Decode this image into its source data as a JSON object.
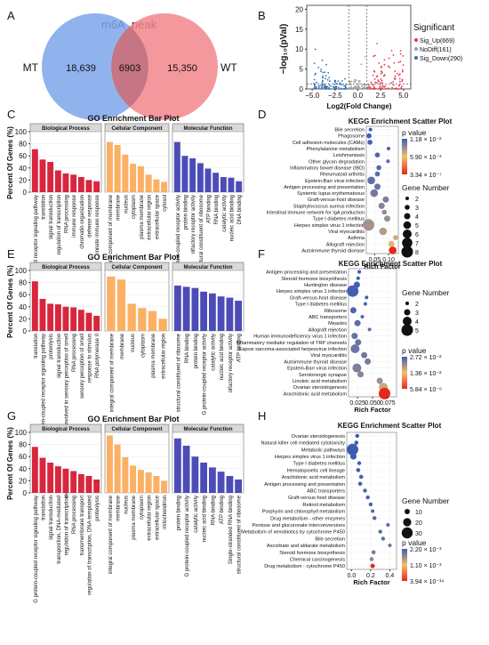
{
  "panel_letters": [
    "A",
    "B",
    "C",
    "D",
    "E",
    "F",
    "G",
    "H"
  ],
  "colors": {
    "bp": "#d7263d",
    "cc": "#fbb064",
    "mf": "#4c4cb8",
    "mt": "#7ea6ea",
    "wt": "#f3868d",
    "overlap": "#c57583",
    "up": "#e8354a",
    "down": "#2f6fb5",
    "nodiff": "#9e9e9e",
    "pv_high": "#3c5bb5",
    "pv_mid": "#f4c06a",
    "pv_low": "#e8271d",
    "strip": "#d9d9d9"
  },
  "venn": {
    "title": "m6A_peak",
    "left_label": "MT",
    "right_label": "WT",
    "left_only": "18,639",
    "overlap": "6903",
    "right_only": "15,350"
  },
  "volcano": {
    "ylabel": "−log₁₀(pVal)",
    "xlabel": "Log2(Fold Change)",
    "xticks": [
      "−5.0",
      "−2.5",
      "0.0",
      "2.5",
      "5.0"
    ],
    "xtick_values": [
      -5,
      -2.5,
      0,
      2.5,
      5
    ],
    "yticks": [
      "0",
      "5",
      "10",
      "15",
      "20"
    ],
    "ytick_values": [
      0,
      5,
      10,
      15,
      20
    ],
    "xlim": [
      -5.6,
      5.8
    ],
    "ylim": [
      0,
      21
    ],
    "legend_title": "Significant",
    "legend": [
      {
        "label": "Sig_Up(669)",
        "color": "#e8354a"
      },
      {
        "label": "NoDiff(161)",
        "color": "#9e9e9e"
      },
      {
        "label": "Sig_Down(290)",
        "color": "#2f6fb5"
      }
    ]
  },
  "go_common": {
    "ylabel": "Percent Of Genes (%)",
    "yticks": [
      "0",
      "20",
      "40",
      "60",
      "80",
      "100"
    ],
    "ytick_values": [
      0,
      20,
      40,
      60,
      80,
      100
    ],
    "ylim": [
      0,
      100
    ]
  },
  "kegg_legend_titles": {
    "pvalue": "p value",
    "gene_number": "Gene Number"
  },
  "chart_data": [
    {
      "type": "bar",
      "panel": "C",
      "title": "GO Enrichment Bar Plot",
      "facets": [
        {
          "name": "Biological Process",
          "categories": [
            "G protein-coupled receptor signaling pathway",
            "translation",
            "signal transduction",
            "regulation of transcription",
            "RNA processing",
            "immune response",
            "chromatin organization",
            "defense response",
            "innate immune response"
          ],
          "values": [
            71,
            54,
            50,
            36,
            31,
            29,
            25,
            20,
            18
          ]
        },
        {
          "name": "Cellular Component",
          "categories": [
            "integral component of membrane",
            "membrane",
            "nucleus",
            "cytoplasm",
            "plasma membrane",
            "extracellular region",
            "extracellular space",
            "cytosol"
          ],
          "values": [
            83,
            78,
            62,
            47,
            43,
            29,
            21,
            17
          ]
        },
        {
          "name": "Molecular Function",
          "categories": [
            "G protein-coupled receptor activity",
            "protein binding",
            "olfactory receptor activity",
            "structural constituent of ribosome",
            "ATP binding",
            "RNA binding",
            "catalytic activity",
            "nucleic acid binding",
            "DNA binding"
          ],
          "values": [
            83,
            60,
            56,
            48,
            39,
            32,
            25,
            24,
            18
          ]
        }
      ]
    },
    {
      "type": "scatter",
      "panel": "D",
      "title": "KEGG Enrichment Scatter Plot",
      "xlabel": "Rich Factor",
      "xlim": [
        0.02,
        0.135
      ],
      "xticks": [
        "0.05",
        "0.10"
      ],
      "xtick_values": [
        0.05,
        0.1
      ],
      "pvalue_legend": {
        "labels": [
          "1.18 × 10⁻²",
          "5.90 × 10⁻³",
          "3.34 × 10⁻⁷"
        ],
        "values": [
          0.0118,
          0.0059,
          3.34e-07
        ]
      },
      "size_legend": {
        "labels": [
          "2",
          "3",
          "4",
          "5",
          "6",
          "7",
          "8"
        ],
        "values": [
          2,
          3,
          4,
          5,
          6,
          7,
          8
        ]
      },
      "terms": [
        {
          "name": "Bile secretion",
          "x": 0.035,
          "pvalue": 0.0118,
          "count": 2
        },
        {
          "name": "Phagosome",
          "x": 0.03,
          "pvalue": 0.01,
          "count": 3
        },
        {
          "name": "Cell adhesion molecules (CAMs)",
          "x": 0.033,
          "pvalue": 0.009,
          "count": 3
        },
        {
          "name": "Phenylalanine metabolism",
          "x": 0.1,
          "pvalue": 0.008,
          "count": 2
        },
        {
          "name": "Leishmaniasis",
          "x": 0.06,
          "pvalue": 0.007,
          "count": 3
        },
        {
          "name": "Other glycan degradation",
          "x": 0.098,
          "pvalue": 0.0065,
          "count": 2
        },
        {
          "name": "Inflammatory bowel disease (IBD)",
          "x": 0.065,
          "pvalue": 0.006,
          "count": 3
        },
        {
          "name": "Rheumatoid arthritis",
          "x": 0.06,
          "pvalue": 0.005,
          "count": 3
        },
        {
          "name": "Epstein-Barr virus infection",
          "x": 0.038,
          "pvalue": 0.004,
          "count": 5
        },
        {
          "name": "Antigen processing and presentation",
          "x": 0.06,
          "pvalue": 0.003,
          "count": 4
        },
        {
          "name": "Systemic lupus erythematosus",
          "x": 0.048,
          "pvalue": 0.0025,
          "count": 5
        },
        {
          "name": "Graft-versus-host disease",
          "x": 0.09,
          "pvalue": 0.002,
          "count": 4
        },
        {
          "name": "Staphylococcus aureus infection",
          "x": 0.075,
          "pvalue": 0.0015,
          "count": 4
        },
        {
          "name": "Intestinal immune network for IgA production",
          "x": 0.085,
          "pvalue": 0.001,
          "count": 3
        },
        {
          "name": "Type I diabetes mellitus",
          "x": 0.095,
          "pvalue": 0.0008,
          "count": 4
        },
        {
          "name": "Herpes simplex virus 1 infection",
          "x": 0.028,
          "pvalue": 0.0006,
          "count": 8
        },
        {
          "name": "Viral myocarditis",
          "x": 0.08,
          "pvalue": 0.0004,
          "count": 5
        },
        {
          "name": "Asthma",
          "x": 0.125,
          "pvalue": 0.0002,
          "count": 3
        },
        {
          "name": "Allograft rejection",
          "x": 0.11,
          "pvalue": 0.0001,
          "count": 4
        },
        {
          "name": "Autoimmune thyroid disease",
          "x": 0.115,
          "pvalue": 3.34e-07,
          "count": 5
        }
      ]
    },
    {
      "type": "bar",
      "panel": "E",
      "title": "GO Enrichment Bar Plot",
      "facets": [
        {
          "name": "Biological Process",
          "categories": [
            "translation",
            "G protein-coupled receptor signaling pathway",
            "proteolysis",
            "signal transduction",
            "detection of chemical stimulus involved in sensory perception of smell",
            "RNA processing",
            "sensory perception of smell",
            "response to stimulus",
            "RNA polymerase II"
          ],
          "values": [
            82,
            53,
            45,
            44,
            40,
            39,
            35,
            30,
            25
          ]
        },
        {
          "name": "Cellular Component",
          "categories": [
            "integral component of membrane",
            "membrane",
            "nucleus",
            "cytoplasm",
            "plasma membrane",
            "extracellular region"
          ],
          "values": [
            90,
            85,
            45,
            38,
            33,
            20
          ]
        },
        {
          "name": "Molecular Function",
          "categories": [
            "structural constituent of ribosome",
            "RNA binding",
            "protein binding",
            "G protein-coupled receptor activity",
            "catalytic activity",
            "nucleic acid binding",
            "olfactory receptor activity",
            "ATP binding"
          ],
          "values": [
            75,
            73,
            71,
            65,
            62,
            57,
            55,
            50
          ]
        }
      ]
    },
    {
      "type": "scatter",
      "panel": "F",
      "title": "KEGG Enrichment Scatter Plot",
      "xlabel": "Rich Factor",
      "xlim": [
        0.01,
        0.09
      ],
      "xticks": [
        "0.025",
        "0.050",
        "0.075"
      ],
      "xtick_values": [
        0.025,
        0.05,
        0.075
      ],
      "pvalue_legend": {
        "labels": [
          "2.72 × 10⁻²",
          "1.36 × 10⁻²",
          "5.84 × 10⁻⁶"
        ],
        "values": [
          0.0272,
          0.0136,
          5.84e-06
        ]
      },
      "size_legend": {
        "labels": [
          "2",
          "3",
          "4",
          "5"
        ],
        "values": [
          2,
          3,
          4,
          5
        ]
      },
      "terms": [
        {
          "name": "Antigen processing and presentation",
          "x": 0.028,
          "pvalue": 0.0272,
          "count": 2
        },
        {
          "name": "Steroid hormone biosynthesis",
          "x": 0.026,
          "pvalue": 0.025,
          "count": 2
        },
        {
          "name": "Huntington disease",
          "x": 0.024,
          "pvalue": 0.024,
          "count": 3
        },
        {
          "name": "Herpes simplex virus 1 infection",
          "x": 0.017,
          "pvalue": 0.023,
          "count": 5
        },
        {
          "name": "Graft-versus-host disease",
          "x": 0.04,
          "pvalue": 0.022,
          "count": 2
        },
        {
          "name": "Type I diabetes mellitus",
          "x": 0.038,
          "pvalue": 0.02,
          "count": 2
        },
        {
          "name": "Ribosome",
          "x": 0.018,
          "pvalue": 0.018,
          "count": 3
        },
        {
          "name": "ABC transporters",
          "x": 0.033,
          "pvalue": 0.016,
          "count": 2
        },
        {
          "name": "Measles",
          "x": 0.025,
          "pvalue": 0.014,
          "count": 3
        },
        {
          "name": "Allograft rejection",
          "x": 0.045,
          "pvalue": 0.012,
          "count": 2
        },
        {
          "name": "Human immunodeficiency virus 1 infection",
          "x": 0.02,
          "pvalue": 0.011,
          "count": 3
        },
        {
          "name": "Inflammatory mediator regulation of TRP channels",
          "x": 0.026,
          "pvalue": 0.01,
          "count": 3
        },
        {
          "name": "Kaposi sarcoma-associated herpesvirus infection",
          "x": 0.021,
          "pvalue": 0.009,
          "count": 4
        },
        {
          "name": "Viral myocarditis",
          "x": 0.036,
          "pvalue": 0.008,
          "count": 3
        },
        {
          "name": "Autoimmune thyroid disease",
          "x": 0.042,
          "pvalue": 0.007,
          "count": 3
        },
        {
          "name": "Epstein-Barr virus infection",
          "x": 0.024,
          "pvalue": 0.006,
          "count": 4
        },
        {
          "name": "Serotonergic synapse",
          "x": 0.03,
          "pvalue": 0.005,
          "count": 3
        },
        {
          "name": "Linoleic acid metabolism",
          "x": 0.062,
          "pvalue": 0.003,
          "count": 3
        },
        {
          "name": "Ovarian steroidogenesis",
          "x": 0.068,
          "pvalue": 0.001,
          "count": 4
        },
        {
          "name": "Arachidonic acid metabolism",
          "x": 0.07,
          "pvalue": 5.84e-06,
          "count": 5
        }
      ]
    },
    {
      "type": "bar",
      "panel": "G",
      "title": "GO Enrichment Bar Plot",
      "facets": [
        {
          "name": "Biological Process",
          "categories": [
            "G protein-coupled receptor signaling pathway",
            "translation",
            "signal transduction",
            "transposition, DNA-mediated",
            "regulation of transcription",
            "RNA processing",
            "transmembrane transport",
            "regulation of transcription, DNA-templated",
            "proteolysis"
          ],
          "values": [
            76,
            58,
            50,
            44,
            40,
            36,
            31,
            28,
            22
          ]
        },
        {
          "name": "Cellular Component",
          "categories": [
            "integral component of membrane",
            "membrane",
            "nucleus",
            "plasma membrane",
            "cytoplasm",
            "extracellular region",
            "extracellular space",
            "mitochondrion"
          ],
          "values": [
            95,
            80,
            59,
            45,
            38,
            34,
            28,
            20
          ]
        },
        {
          "name": "Molecular Function",
          "categories": [
            "protein binding",
            "G protein-coupled receptor activity",
            "catalytic activity",
            "nucleic acid binding",
            "RNA binding",
            "ATP binding",
            "Single-stranded RNA binding",
            "structural constituent of ribosome"
          ],
          "values": [
            90,
            78,
            60,
            50,
            42,
            35,
            28,
            22
          ]
        }
      ]
    },
    {
      "type": "scatter",
      "panel": "H",
      "title": "KEGG Enrichment Scatter Plot",
      "xlabel": "Rich Factor",
      "xlim": [
        -0.05,
        0.47
      ],
      "xticks": [
        "0.0",
        "0.2",
        "0.4"
      ],
      "xtick_values": [
        0,
        0.2,
        0.4
      ],
      "pvalue_legend": {
        "labels": [
          "2.20 × 10⁻³",
          "1.10 × 10⁻³",
          "3.94 × 10⁻¹⁴"
        ],
        "values": [
          0.0022,
          0.0011,
          3.94e-14
        ]
      },
      "size_legend": {
        "labels": [
          "10",
          "20",
          "30"
        ],
        "values": [
          10,
          20,
          30
        ]
      },
      "terms": [
        {
          "name": "Ovarian steroidogenesis",
          "x": 0.06,
          "pvalue": 0.0022,
          "count": 5
        },
        {
          "name": "Natural killer cell mediated cytotoxicity",
          "x": 0.05,
          "pvalue": 0.002,
          "count": 6
        },
        {
          "name": "Metabolic pathways",
          "x": 0.01,
          "pvalue": 0.0019,
          "count": 32
        },
        {
          "name": "Herpes simplex virus 1 infection",
          "x": 0.02,
          "pvalue": 0.0018,
          "count": 14
        },
        {
          "name": "Type I diabetes mellitus",
          "x": 0.08,
          "pvalue": 0.0016,
          "count": 5
        },
        {
          "name": "Hematopoietic cell lineage",
          "x": 0.07,
          "pvalue": 0.0014,
          "count": 6
        },
        {
          "name": "Arachidonic acid metabolism",
          "x": 0.1,
          "pvalue": 0.0013,
          "count": 6
        },
        {
          "name": "Antigen processing and presentation",
          "x": 0.09,
          "pvalue": 0.0012,
          "count": 6
        },
        {
          "name": "ABC transporters",
          "x": 0.14,
          "pvalue": 0.0011,
          "count": 5
        },
        {
          "name": "Graft-versus-host disease",
          "x": 0.17,
          "pvalue": 0.0009,
          "count": 5
        },
        {
          "name": "Retinol metabolism",
          "x": 0.2,
          "pvalue": 0.0008,
          "count": 5
        },
        {
          "name": "Porphyrin and chlorophyll metabolism",
          "x": 0.22,
          "pvalue": 0.0006,
          "count": 4
        },
        {
          "name": "Drug metabolism - other enzymes",
          "x": 0.24,
          "pvalue": 0.0005,
          "count": 5
        },
        {
          "name": "Pentose and glucuronate interconversions",
          "x": 0.38,
          "pvalue": 0.0004,
          "count": 4
        },
        {
          "name": "Metabolism of xenobiotics by cytochrome P450",
          "x": 0.3,
          "pvalue": 0.0003,
          "count": 5
        },
        {
          "name": "Bile secretion",
          "x": 0.33,
          "pvalue": 0.0002,
          "count": 5
        },
        {
          "name": "Ascorbate and aldarate metabolism",
          "x": 0.4,
          "pvalue": 0.0001,
          "count": 4
        },
        {
          "name": "Steroid hormone biosynthesis",
          "x": 0.23,
          "pvalue": 5e-05,
          "count": 6
        },
        {
          "name": "Chemical carcinogenesis",
          "x": 0.21,
          "pvalue": 1e-05,
          "count": 6
        },
        {
          "name": "Drug metabolism - cytochrome P450",
          "x": 0.22,
          "pvalue": 3.94e-14,
          "count": 7
        }
      ]
    }
  ]
}
